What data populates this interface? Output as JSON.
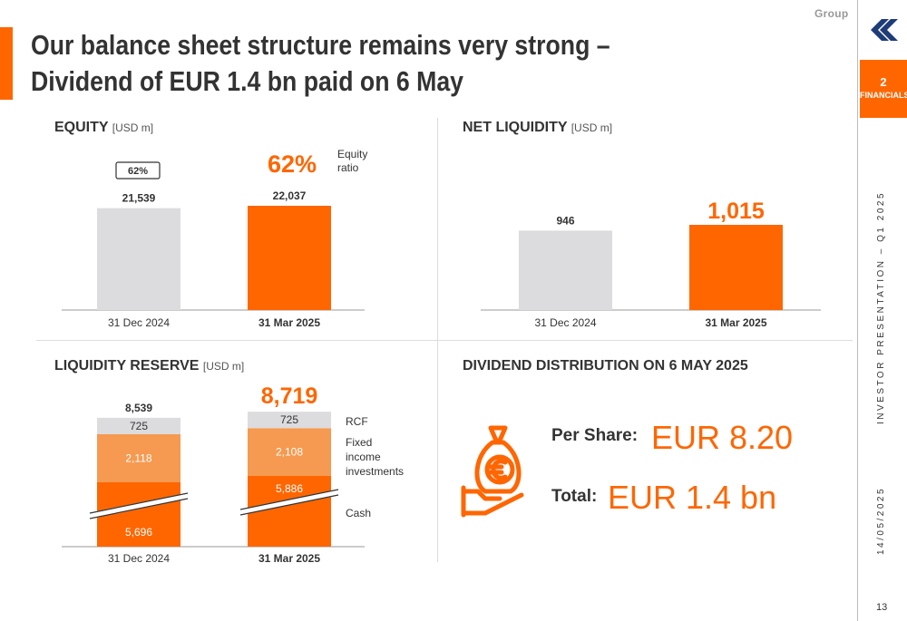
{
  "header": {
    "group_label": "Group",
    "title": "Our balance sheet structure remains very strong – Dividend of EUR 1.4 bn paid on 6 May"
  },
  "sidebar": {
    "section_number": "2",
    "section_label": "FINANCIALS",
    "presentation": "INVESTOR PRESENTATION – Q1 2025",
    "date": "14/05/2025",
    "page_number": "13"
  },
  "colors": {
    "accent": "#ff6600",
    "light_orange": "#f59a50",
    "grey": "#dcdcdf",
    "text_dark": "#333333"
  },
  "equity": {
    "title": "EQUITY",
    "unit": "[USD m]"
  },
  "net_liquidity": {
    "title": "NET LIQUIDITY",
    "unit": "[USD m]"
  },
  "liquidity_reserve": {
    "title": "LIQUIDITY RESERVE",
    "unit": "[USD m]"
  },
  "dividend": {
    "title": "DIVIDEND DISTRIBUTION ON 6 MAY 2025",
    "per_share_label": "Per Share:",
    "per_share_value": "EUR 8.20",
    "total_label": "Total:",
    "total_value": "EUR 1.4 bn",
    "icon": "hand-money-bag-euro-icon"
  },
  "chart_data": [
    {
      "type": "bar",
      "title": "EQUITY",
      "categories": [
        "31 Dec 2024",
        "31 Mar 2025"
      ],
      "values": [
        21539,
        22037
      ],
      "value_labels": [
        "21,539",
        "22,037"
      ],
      "equity_ratio_labels": [
        "62%",
        "62%"
      ],
      "equity_ratio_text": "Equity ratio",
      "colors": [
        "#dcdcdf",
        "#ff6600"
      ]
    },
    {
      "type": "bar",
      "title": "NET LIQUIDITY",
      "categories": [
        "31 Dec 2024",
        "31 Mar 2025"
      ],
      "values": [
        946,
        1015
      ],
      "value_labels": [
        "946",
        "1,015"
      ],
      "colors": [
        "#dcdcdf",
        "#ff6600"
      ]
    },
    {
      "type": "bar",
      "stacked": true,
      "axis_break": true,
      "title": "LIQUIDITY RESERVE",
      "categories": [
        "31 Dec 2024",
        "31 Mar 2025"
      ],
      "totals": [
        "8,539",
        "8,719"
      ],
      "series": [
        {
          "name": "Cash",
          "values": [
            5696,
            5886
          ],
          "labels": [
            "5,696",
            "5,886"
          ],
          "color": "#ff6600"
        },
        {
          "name": "Fixed income investments",
          "values": [
            2118,
            2108
          ],
          "labels": [
            "2,118",
            "2,108"
          ],
          "color": "#f59a50"
        },
        {
          "name": "RCF",
          "values": [
            725,
            725
          ],
          "labels": [
            "725",
            "725"
          ],
          "color": "#dcdcdf"
        }
      ]
    }
  ]
}
